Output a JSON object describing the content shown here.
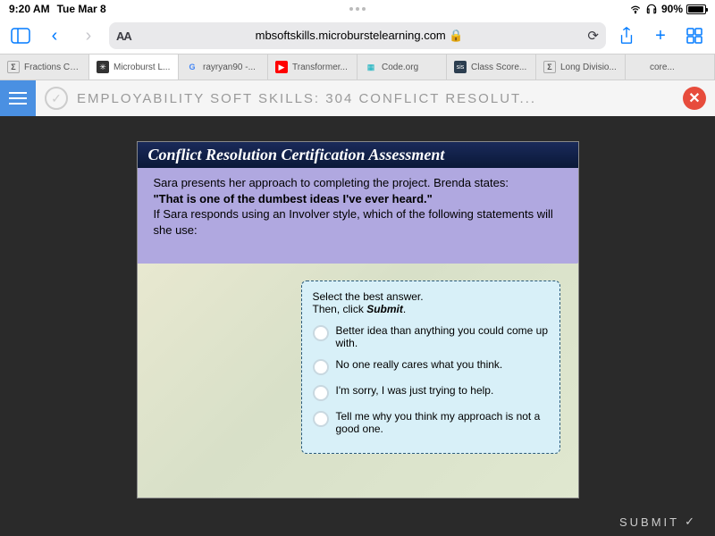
{
  "status": {
    "time": "9:20 AM",
    "date": "Tue Mar 8",
    "battery": "90%"
  },
  "safari": {
    "url": "mbsoftskills.microburstelearning.com",
    "aa": "AA"
  },
  "tabs": [
    {
      "label": "Fractions Ca...",
      "icon": "Σ"
    },
    {
      "label": "Microburst L...",
      "icon": "✳"
    },
    {
      "label": "rayryan90 -...",
      "icon": "G"
    },
    {
      "label": "Transformer...",
      "icon": "▶"
    },
    {
      "label": "Code.org",
      "icon": "▦"
    },
    {
      "label": "Class Score...",
      "icon": "sis"
    },
    {
      "label": "Long Divisio...",
      "icon": "Σ"
    },
    {
      "label": "core...",
      "icon": ""
    }
  ],
  "lms": {
    "title": "EMPLOYABILITY SOFT SKILLS: 304 CONFLICT RESOLUT..."
  },
  "slide": {
    "title": "Conflict Resolution Certification Assessment",
    "scenario_l1": "Sara presents her approach to completing the project. Brenda states:",
    "scenario_quote": "\"That is one of the dumbest ideas I've ever heard.\"",
    "scenario_l2": "If Sara responds using an Involver style, which of the following statements will she use:",
    "instr_l1": "Select the best answer.",
    "instr_l2a": "Then, click ",
    "instr_l2b": "Submit",
    "options": [
      "Better idea than anything you could come up with.",
      "No one really cares what you think.",
      "I'm sorry, I was just trying to help.",
      "Tell me why you think my approach is not a good one."
    ]
  },
  "submit": "SUBMIT"
}
